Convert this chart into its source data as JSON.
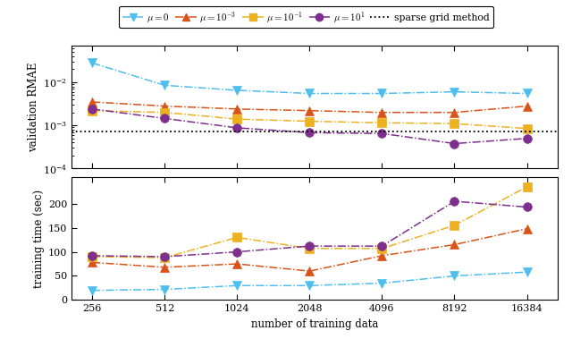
{
  "x": [
    256,
    512,
    1024,
    2048,
    4096,
    8192,
    16384
  ],
  "rmae_mu0": [
    0.028,
    0.0085,
    0.0065,
    0.0055,
    0.0055,
    0.006,
    0.0055
  ],
  "rmae_mu1e3": [
    0.0035,
    0.0028,
    0.0024,
    0.0022,
    0.002,
    0.002,
    0.0028
  ],
  "rmae_mu1e1": [
    0.0022,
    0.002,
    0.0014,
    0.00125,
    0.00115,
    0.0011,
    0.00085
  ],
  "rmae_mu1e4": [
    0.0024,
    0.00145,
    0.00088,
    0.00068,
    0.00065,
    0.00038,
    0.0005
  ],
  "sparse_grid_rmae": 0.00072,
  "time_mu0": [
    20,
    22,
    30,
    30,
    35,
    50,
    58
  ],
  "time_mu1e3": [
    78,
    68,
    75,
    60,
    92,
    115,
    148
  ],
  "time_mu1e1": [
    90,
    88,
    130,
    107,
    107,
    155,
    235
  ],
  "time_mu1e4": [
    92,
    90,
    100,
    112,
    112,
    205,
    193
  ],
  "color_mu0": "#4DBEEE",
  "color_mu1e3": "#D95319",
  "color_mu1e1": "#EDB120",
  "color_mu1e4": "#7E2F8E",
  "xlabel": "number of training data",
  "ylabel_top": "validation RMAE",
  "ylabel_bot": "training time (sec)",
  "labels": [
    "$\\mu = 0$",
    "$\\mu = 10^{-3}$",
    "$\\mu = 10^{-1}$",
    "$\\mu = 10^{1}$",
    "sparse grid method"
  ]
}
